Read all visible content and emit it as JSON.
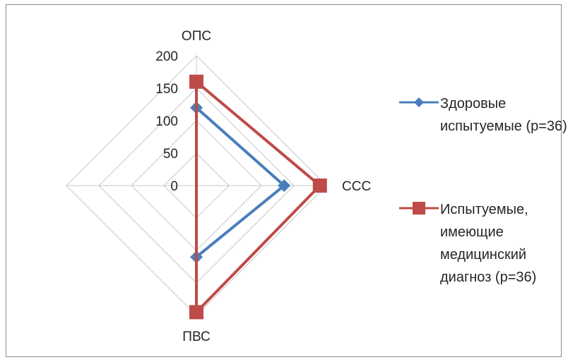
{
  "chart_data": {
    "type": "radar",
    "categories": [
      "ОПС",
      "ССС",
      "ПВС",
      ""
    ],
    "rticks": [
      "0",
      "50",
      "100",
      "150",
      "200"
    ],
    "rlim": [
      0,
      200
    ],
    "grid": true,
    "legend_position": "right",
    "series": [
      {
        "name": "Здоровые испытуемые (р=36)",
        "color": "#4a7ebb",
        "marker": "diamond",
        "values": [
          120,
          135,
          110,
          0
        ]
      },
      {
        "name": "Испытуемые, имеющие медицинский диагноз  (р=36)",
        "color": "#be4b48",
        "marker": "square",
        "values": [
          160,
          190,
          195,
          0
        ]
      }
    ]
  }
}
